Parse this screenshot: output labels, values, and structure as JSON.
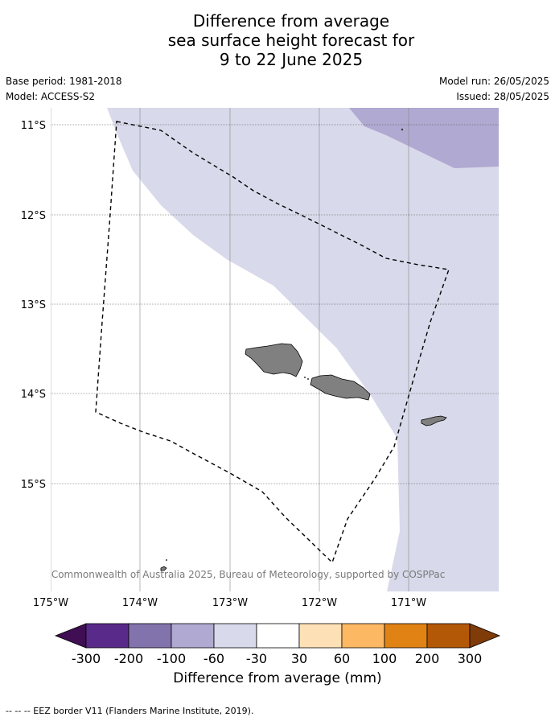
{
  "title_lines": [
    "Difference from average",
    "sea surface height forecast for",
    "9 to 22 June 2025"
  ],
  "meta": {
    "base_period": "Base period: 1981-2018",
    "model": "Model: ACCESS-S2",
    "model_run": "Model run: 26/05/2025",
    "issued": "Issued: 28/05/2025"
  },
  "map": {
    "lat_labels": [
      "11°S",
      "12°S",
      "13°S",
      "14°S",
      "15°S"
    ],
    "lon_labels": [
      "175°W",
      "174°W",
      "173°W",
      "172°W",
      "171°W"
    ],
    "copyright": "© Commonwealth of Australia 2025, Bureau of Meteorology, supported by COSPPac"
  },
  "colorbar": {
    "ticks": [
      "-300",
      "-200",
      "-100",
      "-60",
      "-30",
      "30",
      "60",
      "100",
      "200",
      "300"
    ],
    "colors": [
      "#3f0e53",
      "#5a2a8a",
      "#8373ad",
      "#b0a9d1",
      "#d8d9ea",
      "#ffffff",
      "#fee0b6",
      "#fdb863",
      "#e08214",
      "#b35806",
      "#7f3b08"
    ],
    "label": "Difference from average (mm)"
  },
  "footer": "--  --  -- EEZ border V11 (Flanders Marine Institute, 2019)."
}
